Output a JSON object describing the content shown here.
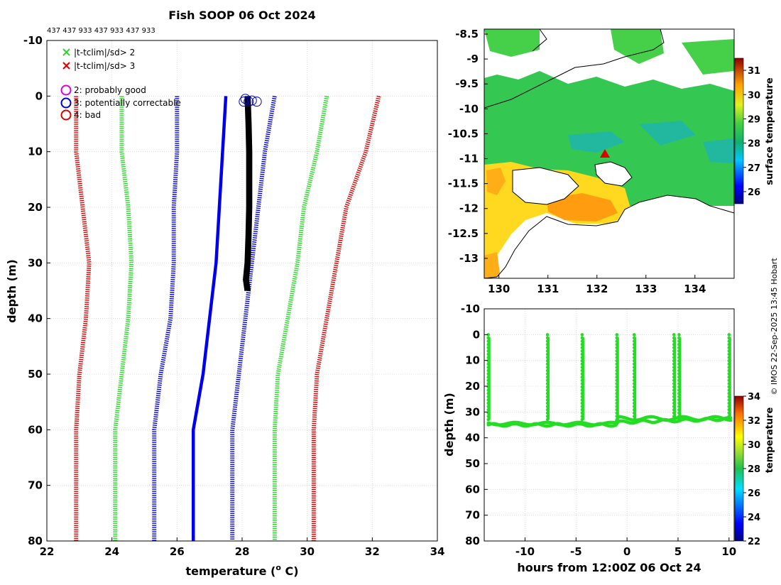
{
  "chart_data": [
    {
      "type": "line",
      "title": "Fish SOOP 06 Oct 2024",
      "subtitle": "437 437 933 437 933 437 933",
      "xlabel": "temperature (",
      "xlabel_sup": "o",
      "xlabel_unit": " C)",
      "ylabel": "depth (m)",
      "xlim": [
        22,
        34
      ],
      "ylim": [
        80,
        -10
      ],
      "xticks": [
        22,
        24,
        26,
        28,
        30,
        32,
        34
      ],
      "yticks": [
        -10,
        0,
        10,
        20,
        30,
        40,
        50,
        60,
        70,
        80
      ],
      "grid": true,
      "legend_cross": [
        {
          "label": "|t-tclim|/sd> 2",
          "color": "#22dd22"
        },
        {
          "label": "|t-tclim|/sd> 3",
          "color": "#dd0000"
        }
      ],
      "legend_circle": [
        {
          "label": "2: probably good",
          "color": "#dd00dd"
        },
        {
          "label": "3: potentially correctable",
          "color": "#0000cc"
        },
        {
          "label": "4: bad",
          "color": "#dd0000"
        }
      ],
      "depths": [
        0,
        10,
        20,
        30,
        40,
        50,
        60,
        70,
        80
      ],
      "series": [
        {
          "name": "red-left",
          "color": "#dd0000",
          "style": "dotted",
          "values": [
            22.9,
            22.9,
            23.1,
            23.3,
            23.2,
            23.0,
            22.9,
            22.9,
            22.9
          ]
        },
        {
          "name": "green-left",
          "color": "#22dd22",
          "style": "dotted",
          "values": [
            24.3,
            24.3,
            24.5,
            24.6,
            24.5,
            24.3,
            24.1,
            24.1,
            24.1
          ]
        },
        {
          "name": "blue-left",
          "color": "#0000ee",
          "style": "dotted",
          "values": [
            26.0,
            26.0,
            25.9,
            25.9,
            25.8,
            25.5,
            25.3,
            25.3,
            25.3
          ]
        },
        {
          "name": "climatology-mean",
          "color": "#0000ee",
          "style": "solid",
          "values": [
            27.5,
            27.4,
            27.3,
            27.2,
            27.0,
            26.8,
            26.5,
            26.5,
            26.5
          ]
        },
        {
          "name": "blue-right",
          "color": "#0000ee",
          "style": "dotted",
          "values": [
            29.0,
            28.7,
            28.5,
            28.3,
            28.1,
            27.9,
            27.7,
            27.7,
            27.7
          ]
        },
        {
          "name": "green-right",
          "color": "#22dd22",
          "style": "dotted",
          "values": [
            30.6,
            30.3,
            29.9,
            29.7,
            29.4,
            29.1,
            29.0,
            29.0,
            29.0
          ]
        },
        {
          "name": "red-right",
          "color": "#dd0000",
          "style": "dotted",
          "values": [
            32.2,
            31.8,
            31.2,
            30.9,
            30.6,
            30.3,
            30.2,
            30.2,
            30.2
          ]
        }
      ],
      "observed": {
        "color": "#000000",
        "depths": [
          0,
          5,
          10,
          15,
          20,
          25,
          30,
          33,
          35
        ],
        "values": [
          28.15,
          28.18,
          28.2,
          28.2,
          28.2,
          28.18,
          28.15,
          28.1,
          28.15
        ]
      },
      "flag_circles": [
        {
          "temp": 28.05,
          "depth": 1
        },
        {
          "temp": 28.1,
          "depth": 0.5
        },
        {
          "temp": 28.2,
          "depth": 1
        },
        {
          "temp": 28.3,
          "depth": 0.8
        },
        {
          "temp": 28.45,
          "depth": 1
        }
      ]
    },
    {
      "type": "heatmap",
      "xlim": [
        129.7,
        134.8
      ],
      "ylim": [
        -13.4,
        -8.4
      ],
      "xticks": [
        130,
        131,
        132,
        133,
        134
      ],
      "yticks": [
        -8.5,
        -9,
        -9.5,
        -10,
        -10.5,
        -11,
        -11.5,
        -12,
        -12.5,
        -13
      ],
      "colorbar_label": "surface temperature",
      "colorbar_range": [
        25.5,
        31.5
      ],
      "colorbar_ticks": [
        26,
        27,
        28,
        29,
        30,
        31
      ],
      "marker": {
        "lon": 132.15,
        "lat": -10.9,
        "color": "#dd0000"
      }
    },
    {
      "type": "scatter",
      "xlabel": "hours from 12:00Z 06 Oct 24",
      "ylabel": "depth (m)",
      "xlim": [
        -14,
        10.5
      ],
      "ylim": [
        80,
        -10
      ],
      "xticks": [
        -10,
        -5,
        0,
        5,
        10
      ],
      "yticks": [
        -10,
        0,
        10,
        20,
        30,
        40,
        50,
        60,
        70,
        80
      ],
      "colorbar_label": "temperature",
      "colorbar_range": [
        22,
        34
      ],
      "colorbar_ticks": [
        22,
        24,
        26,
        28,
        30,
        32,
        34
      ],
      "point_color": "#22dd22",
      "casts_hours": [
        -13.6,
        -7.8,
        -4.4,
        -1.0,
        0.7,
        4.6,
        5.1,
        10.0
      ]
    }
  ],
  "copyright": "© IMOS 22-Sep-2025 13:45 Hobart"
}
